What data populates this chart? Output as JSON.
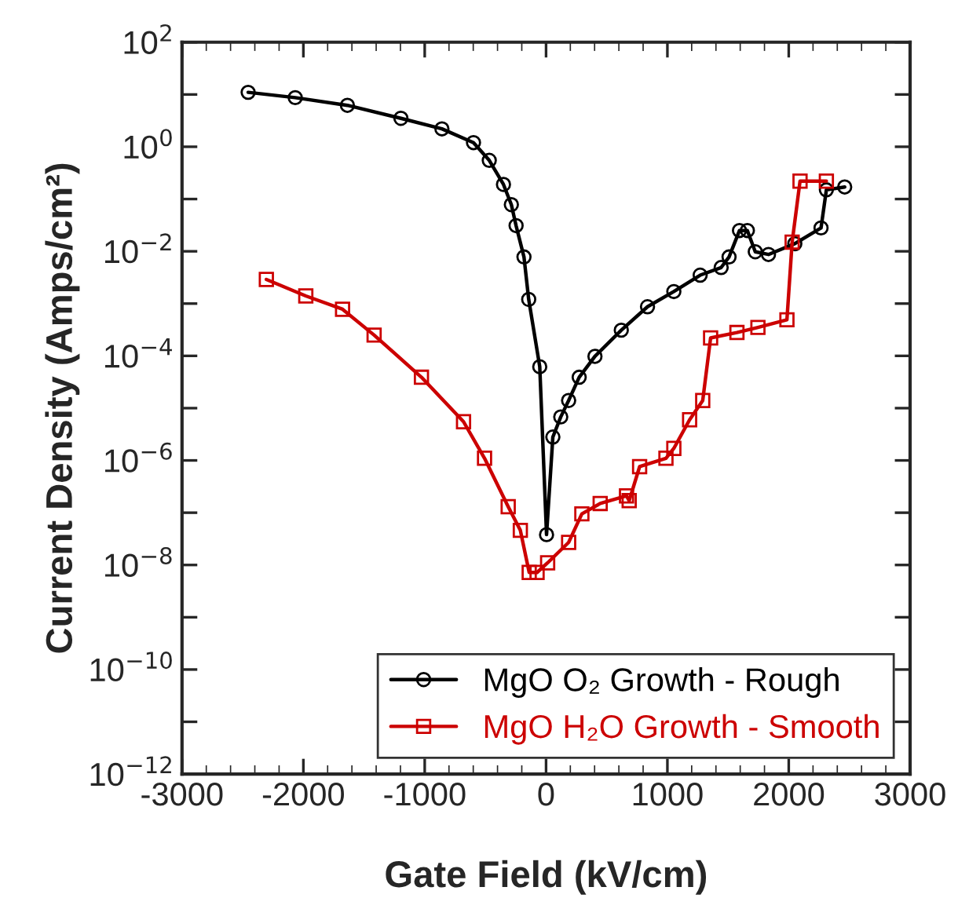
{
  "chart_data": {
    "type": "line",
    "xlabel": "Gate Field (kV/cm)",
    "ylabel": "Current Density (Amps/cm²)",
    "log": "y",
    "xlim": [
      -3000,
      3000
    ],
    "xticks": [
      -3000,
      -2000,
      -1000,
      0,
      1000,
      2000,
      3000
    ],
    "ylim": [
      1e-12,
      100
    ],
    "yticks": [
      {
        "value": 1e-12,
        "label": "10$^{−12}$"
      },
      {
        "value": 1e-11,
        "label": null
      },
      {
        "value": 1e-10,
        "label": "10$^{−10}$"
      },
      {
        "value": 1e-09,
        "label": null
      },
      {
        "value": 1e-08,
        "label": "10$^{−8}$"
      },
      {
        "value": 1e-07,
        "label": null
      },
      {
        "value": 1e-06,
        "label": "10$^{−6}$"
      },
      {
        "value": 1e-05,
        "label": null
      },
      {
        "value": 0.0001,
        "label": "10$^{−4}$"
      },
      {
        "value": 0.001,
        "label": null
      },
      {
        "value": 0.01,
        "label": "10$^{−2}$"
      },
      {
        "value": 0.1,
        "label": null
      },
      {
        "value": 1,
        "label": "10$^{0}$"
      },
      {
        "value": 10,
        "label": null
      },
      {
        "value": 100,
        "label": "10$^{2}$"
      }
    ],
    "legend": "bottom right",
    "grid": false,
    "line_style": "solid",
    "series": [
      {
        "name": "MgO O₂ Growth - Rough",
        "color": "#000000",
        "marker": "circle",
        "x": [
          -2455,
          -2067,
          -1637,
          -1196,
          -858,
          -598,
          -468,
          -351,
          -286,
          -247,
          -182,
          -143,
          -52,
          4,
          56,
          121,
          186,
          273,
          403,
          620,
          836,
          1053,
          1270,
          1443,
          1508,
          1594,
          1659,
          1724,
          1833,
          2050,
          2266,
          2310,
          2461
        ],
        "values": [
          11,
          8.7,
          6.2,
          3.5,
          2.2,
          1.2,
          0.55,
          0.19,
          0.078,
          0.031,
          0.0078,
          0.0012,
          6.2e-05,
          3.8e-08,
          2.8e-06,
          6.8e-06,
          1.4e-05,
          3.9e-05,
          9.8e-05,
          0.00031,
          0.00087,
          0.0017,
          0.0035,
          0.0049,
          0.0078,
          0.025,
          0.025,
          0.0098,
          0.0087,
          0.014,
          0.028,
          0.15,
          0.17
        ]
      },
      {
        "name": "MgO H₂O Growth - Smooth",
        "color": "#cc0000",
        "marker": "square",
        "x": [
          -2305,
          -1980,
          -1677,
          -1417,
          -1027,
          -680,
          -507,
          -312,
          -212,
          -139,
          -74,
          13,
          186,
          295,
          446,
          663,
          685,
          771,
          988,
          1053,
          1183,
          1291,
          1356,
          1573,
          1746,
          1985,
          2028,
          2093,
          2310
        ],
        "values": [
          0.0029,
          0.0014,
          0.00078,
          0.00025,
          3.9e-05,
          5.5e-06,
          1.1e-06,
          1.3e-07,
          4.6e-08,
          7.2e-09,
          7.2e-09,
          1.1e-08,
          2.7e-08,
          9.5e-08,
          1.5e-07,
          2.1e-07,
          1.7e-07,
          7.6e-07,
          1.1e-06,
          1.7e-06,
          6e-06,
          1.4e-05,
          0.00022,
          0.00028,
          0.00035,
          0.00049,
          0.015,
          0.22,
          0.22
        ]
      }
    ]
  }
}
